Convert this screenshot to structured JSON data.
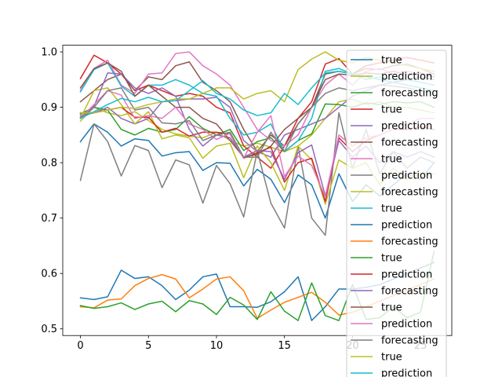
{
  "chart_data": {
    "type": "line",
    "title": "",
    "xlabel": "",
    "ylabel": "",
    "xlim": [
      -1.3,
      27.3
    ],
    "ylim": [
      0.488,
      1.012
    ],
    "xticks": [
      0,
      5,
      10,
      15,
      20,
      25
    ],
    "yticks": [
      0.5,
      0.6,
      0.7,
      0.8,
      0.9,
      1.0
    ],
    "ytick_labels": [
      "0.5",
      "0.6",
      "0.7",
      "0.8",
      "0.9",
      "1.0"
    ],
    "grid": false,
    "legend_position": "right",
    "legend": [
      "true",
      "prediction",
      "forecasting",
      "true",
      "prediction",
      "forecasting",
      "true",
      "prediction",
      "forecasting",
      "true",
      "prediction",
      "forecasting",
      "true",
      "prediction",
      "forecasting",
      "true",
      "prediction",
      "forecasting",
      "true",
      "prediction"
    ],
    "series": [
      {
        "name": "true",
        "color": "#1f77b4",
        "x": [
          0,
          1,
          2,
          3,
          4,
          5,
          6,
          7,
          8,
          9,
          10,
          11,
          12,
          13,
          14,
          15,
          16,
          17,
          18,
          19,
          20,
          21,
          22,
          23,
          24,
          25,
          26
        ],
        "values": [
          0.838,
          0.87,
          0.855,
          0.83,
          0.843,
          0.84,
          0.812,
          0.818,
          0.82,
          0.786,
          0.8,
          0.799,
          0.758,
          0.788,
          0.77,
          0.728,
          0.778,
          0.76,
          0.7,
          0.78,
          0.73,
          0.76,
          0.74,
          0.76,
          0.78,
          0.77,
          0.8
        ]
      },
      {
        "name": "prediction",
        "color": "#bcbd22",
        "x": [
          0,
          1,
          2,
          3,
          4,
          5,
          6,
          7,
          8,
          9,
          10,
          11,
          12,
          13,
          14,
          15,
          16,
          17,
          18,
          19,
          20,
          21,
          22,
          23,
          24,
          25,
          26
        ],
        "values": [
          0.875,
          0.9,
          0.89,
          0.885,
          0.892,
          0.876,
          0.86,
          0.852,
          0.848,
          0.845,
          0.855,
          0.84,
          0.83,
          0.835,
          0.828,
          0.82,
          0.83,
          0.85,
          0.88,
          0.91,
          0.915,
          0.905,
          0.91,
          0.9,
          0.9,
          0.895,
          0.89
        ]
      },
      {
        "name": "forecasting",
        "color": "#2ca02c",
        "x": [
          0,
          1,
          2,
          3,
          4,
          5,
          6,
          7,
          8,
          9,
          10,
          11,
          12,
          13,
          14,
          15,
          16,
          17,
          18,
          19,
          20,
          21,
          22,
          23,
          24,
          25,
          26
        ],
        "values": [
          0.888,
          0.9,
          0.895,
          0.86,
          0.85,
          0.862,
          0.855,
          0.86,
          0.883,
          0.862,
          0.85,
          0.86,
          0.822,
          0.838,
          0.845,
          0.82,
          0.84,
          0.852,
          0.906,
          0.905,
          0.9,
          0.908,
          0.905,
          0.91,
          0.908,
          0.91,
          0.9
        ]
      },
      {
        "name": "true",
        "color": "#d62728",
        "x": [
          0,
          1,
          2,
          3,
          4,
          5,
          6,
          7,
          8,
          9,
          10,
          11,
          12,
          13,
          14,
          15,
          16,
          17,
          18,
          19,
          20,
          21,
          22,
          23,
          24,
          25,
          26
        ],
        "values": [
          0.952,
          0.994,
          0.98,
          0.96,
          0.93,
          0.94,
          0.93,
          0.92,
          0.925,
          0.92,
          0.9,
          0.89,
          0.83,
          0.81,
          0.79,
          0.83,
          0.88,
          0.91,
          0.978,
          0.988,
          0.96,
          0.975,
          0.98,
          0.985,
          0.99,
          0.985,
          0.98
        ]
      },
      {
        "name": "prediction",
        "color": "#9467bd",
        "x": [
          0,
          1,
          2,
          3,
          4,
          5,
          6,
          7,
          8,
          9,
          10,
          11,
          12,
          13,
          14,
          15,
          16,
          17,
          18,
          19,
          20,
          21,
          22,
          23,
          24,
          25,
          26
        ],
        "values": [
          0.885,
          0.89,
          0.9,
          0.88,
          0.87,
          0.88,
          0.91,
          0.912,
          0.915,
          0.915,
          0.918,
          0.9,
          0.84,
          0.82,
          0.81,
          0.85,
          0.86,
          0.87,
          0.88,
          0.9,
          0.92,
          0.93,
          0.94,
          0.945,
          0.95,
          0.955,
          0.95
        ]
      },
      {
        "name": "forecasting",
        "color": "#8c564b",
        "x": [
          0,
          1,
          2,
          3,
          4,
          5,
          6,
          7,
          8,
          9,
          10,
          11,
          12,
          13,
          14,
          15,
          16,
          17,
          18,
          19,
          20,
          21,
          22,
          23,
          24,
          25,
          26
        ],
        "values": [
          0.91,
          0.93,
          0.95,
          0.96,
          0.93,
          0.955,
          0.95,
          0.975,
          0.982,
          0.945,
          0.93,
          0.91,
          0.86,
          0.82,
          0.85,
          0.83,
          0.87,
          0.9,
          0.96,
          0.965,
          0.96,
          0.97,
          0.968,
          0.975,
          0.978,
          0.97,
          0.96
        ]
      },
      {
        "name": "true",
        "color": "#e377c2",
        "x": [
          0,
          1,
          2,
          3,
          4,
          5,
          6,
          7,
          8,
          9,
          10,
          11,
          12,
          13,
          14,
          15,
          16,
          17,
          18,
          19,
          20,
          21,
          22,
          23,
          24,
          25,
          26
        ],
        "values": [
          0.93,
          0.97,
          0.985,
          0.94,
          0.925,
          0.96,
          0.962,
          0.997,
          1.0,
          0.975,
          0.96,
          0.94,
          0.9,
          0.86,
          0.84,
          0.83,
          0.85,
          0.9,
          0.94,
          0.96,
          0.94,
          0.965,
          0.97,
          0.96,
          0.965,
          0.96,
          0.955
        ]
      },
      {
        "name": "prediction",
        "color": "#7f7f7f",
        "x": [
          0,
          1,
          2,
          3,
          4,
          5,
          6,
          7,
          8,
          9,
          10,
          11,
          12,
          13,
          14,
          15,
          16,
          17,
          18,
          19,
          20,
          21,
          22,
          23,
          24,
          25,
          26
        ],
        "values": [
          0.768,
          0.87,
          0.838,
          0.776,
          0.831,
          0.822,
          0.755,
          0.805,
          0.796,
          0.727,
          0.795,
          0.762,
          0.702,
          0.821,
          0.727,
          0.682,
          0.83,
          0.7,
          0.669,
          0.89,
          0.79,
          0.86,
          0.78,
          0.82,
          0.79,
          0.81,
          0.8
        ]
      },
      {
        "name": "forecasting",
        "color": "#bcbd22",
        "x": [
          0,
          1,
          2,
          3,
          4,
          5,
          6,
          7,
          8,
          9,
          10,
          11,
          12,
          13,
          14,
          15,
          16,
          17,
          18,
          19,
          20,
          21,
          22,
          23,
          24,
          25,
          26
        ],
        "values": [
          0.88,
          0.93,
          0.935,
          0.905,
          0.87,
          0.892,
          0.843,
          0.85,
          0.845,
          0.808,
          0.83,
          0.835,
          0.773,
          0.83,
          0.8,
          0.75,
          0.83,
          0.805,
          0.725,
          0.805,
          0.79,
          0.8,
          0.76,
          0.79,
          0.77,
          0.78,
          0.78
        ]
      },
      {
        "name": "true",
        "color": "#17becf",
        "x": [
          0,
          1,
          2,
          3,
          4,
          5,
          6,
          7,
          8,
          9,
          10,
          11,
          12,
          13,
          14,
          15,
          16,
          17,
          18,
          19,
          20,
          21,
          22,
          23,
          24,
          25,
          26
        ],
        "values": [
          0.928,
          0.968,
          0.98,
          0.938,
          0.92,
          0.94,
          0.94,
          0.95,
          0.94,
          0.925,
          0.92,
          0.88,
          0.85,
          0.855,
          0.87,
          0.82,
          0.84,
          0.88,
          0.965,
          0.97,
          0.96,
          0.95,
          0.955,
          0.95,
          0.95,
          0.945,
          0.94
        ]
      },
      {
        "name": "prediction",
        "color": "#1f77b4",
        "x": [
          0,
          1,
          2,
          3,
          4,
          5,
          6,
          7,
          8,
          9,
          10,
          11,
          12,
          13,
          14,
          15,
          16,
          17,
          18,
          19,
          20,
          21,
          22,
          23,
          24,
          25,
          26
        ],
        "values": [
          0.556,
          0.553,
          0.558,
          0.606,
          0.591,
          0.594,
          0.578,
          0.553,
          0.57,
          0.594,
          0.599,
          0.54,
          0.54,
          0.539,
          0.549,
          0.567,
          0.594,
          0.515,
          0.54,
          0.572,
          0.572,
          0.575,
          0.58,
          0.59,
          0.6,
          0.61,
          0.62
        ]
      },
      {
        "name": "forecasting",
        "color": "#ff7f0e",
        "x": [
          0,
          1,
          2,
          3,
          4,
          5,
          6,
          7,
          8,
          9,
          10,
          11,
          12,
          13,
          14,
          15,
          16,
          17,
          18,
          19,
          20,
          21,
          22,
          23,
          24,
          25,
          26
        ],
        "values": [
          0.54,
          0.538,
          0.552,
          0.554,
          0.578,
          0.591,
          0.598,
          0.59,
          0.556,
          0.572,
          0.59,
          0.594,
          0.569,
          0.519,
          0.534,
          0.548,
          0.557,
          0.566,
          0.548,
          0.525,
          0.53,
          0.54,
          0.55,
          0.56,
          0.57,
          0.58,
          0.59
        ]
      },
      {
        "name": "true",
        "color": "#2ca02c",
        "x": [
          0,
          1,
          2,
          3,
          4,
          5,
          6,
          7,
          8,
          9,
          10,
          11,
          12,
          13,
          14,
          15,
          16,
          17,
          18,
          19,
          20,
          21,
          22,
          23,
          24,
          25,
          26
        ],
        "values": [
          0.542,
          0.537,
          0.54,
          0.547,
          0.535,
          0.545,
          0.55,
          0.531,
          0.551,
          0.545,
          0.526,
          0.557,
          0.543,
          0.517,
          0.567,
          0.532,
          0.515,
          0.583,
          0.524,
          0.515,
          0.58,
          0.517,
          0.52,
          0.54,
          0.52,
          0.53,
          0.64
        ]
      },
      {
        "name": "prediction",
        "color": "#d62728",
        "x": [
          0,
          1,
          2,
          3,
          4,
          5,
          6,
          7,
          8,
          9,
          10,
          11,
          12,
          13,
          14,
          15,
          16,
          17,
          18,
          19,
          20,
          21,
          22,
          23,
          24,
          25,
          26
        ],
        "values": [
          0.89,
          0.89,
          0.895,
          0.9,
          0.882,
          0.882,
          0.855,
          0.862,
          0.848,
          0.855,
          0.855,
          0.852,
          0.808,
          0.818,
          0.828,
          0.765,
          0.8,
          0.808,
          0.73,
          0.845,
          0.82,
          0.84,
          0.85,
          0.86,
          0.86,
          0.865,
          0.86
        ]
      },
      {
        "name": "forecasting",
        "color": "#9467bd",
        "x": [
          0,
          1,
          2,
          3,
          4,
          5,
          6,
          7,
          8,
          9,
          10,
          11,
          12,
          13,
          14,
          15,
          16,
          17,
          18,
          19,
          20,
          21,
          22,
          23,
          24,
          25,
          26
        ],
        "values": [
          0.882,
          0.902,
          0.962,
          0.96,
          0.935,
          0.925,
          0.935,
          0.92,
          0.86,
          0.83,
          0.85,
          0.845,
          0.81,
          0.822,
          0.82,
          0.77,
          0.818,
          0.832,
          0.74,
          0.84,
          0.81,
          0.83,
          0.8,
          0.82,
          0.81,
          0.82,
          0.81
        ]
      },
      {
        "name": "true",
        "color": "#8c564b",
        "x": [
          0,
          1,
          2,
          3,
          4,
          5,
          6,
          7,
          8,
          9,
          10,
          11,
          12,
          13,
          14,
          15,
          16,
          17,
          18,
          19,
          20,
          21,
          22,
          23,
          24,
          25,
          26
        ],
        "values": [
          0.935,
          0.97,
          0.98,
          0.965,
          0.92,
          0.94,
          0.92,
          0.9,
          0.9,
          0.88,
          0.87,
          0.84,
          0.81,
          0.815,
          0.83,
          0.86,
          0.88,
          0.9,
          0.95,
          0.96,
          0.958,
          0.962,
          0.96,
          0.965,
          0.96,
          0.962,
          0.955
        ]
      },
      {
        "name": "prediction",
        "color": "#e377c2",
        "x": [
          0,
          1,
          2,
          3,
          4,
          5,
          6,
          7,
          8,
          9,
          10,
          11,
          12,
          13,
          14,
          15,
          16,
          17,
          18,
          19,
          20,
          21,
          22,
          23,
          24,
          25,
          26
        ],
        "values": [
          0.88,
          0.905,
          0.93,
          0.922,
          0.88,
          0.885,
          0.88,
          0.9,
          0.87,
          0.86,
          0.842,
          0.853,
          0.808,
          0.855,
          0.885,
          0.775,
          0.812,
          0.795,
          0.738,
          0.85,
          0.83,
          0.845,
          0.85,
          0.86,
          0.87,
          0.88,
          0.88
        ]
      },
      {
        "name": "forecasting",
        "color": "#7f7f7f",
        "x": [
          0,
          1,
          2,
          3,
          4,
          5,
          6,
          7,
          8,
          9,
          10,
          11,
          12,
          13,
          14,
          15,
          16,
          17,
          18,
          19,
          20,
          21,
          22,
          23,
          24,
          25,
          26
        ],
        "values": [
          0.88,
          0.9,
          0.93,
          0.935,
          0.895,
          0.9,
          0.872,
          0.87,
          0.876,
          0.84,
          0.85,
          0.855,
          0.81,
          0.81,
          0.855,
          0.82,
          0.87,
          0.9,
          0.925,
          0.935,
          0.93,
          0.935,
          0.94,
          0.938,
          0.935,
          0.93,
          0.925
        ]
      },
      {
        "name": "true",
        "color": "#bcbd22",
        "x": [
          0,
          1,
          2,
          3,
          4,
          5,
          6,
          7,
          8,
          9,
          10,
          11,
          12,
          13,
          14,
          15,
          16,
          17,
          18,
          19,
          20,
          21,
          22,
          23,
          24,
          25,
          26
        ],
        "values": [
          0.89,
          0.89,
          0.895,
          0.9,
          0.898,
          0.905,
          0.91,
          0.915,
          0.915,
          0.925,
          0.935,
          0.935,
          0.915,
          0.925,
          0.93,
          0.91,
          0.968,
          0.987,
          1.0,
          0.985,
          0.98,
          0.99,
          0.985,
          0.98,
          0.975,
          0.97,
          0.965
        ]
      },
      {
        "name": "prediction",
        "color": "#17becf",
        "x": [
          0,
          1,
          2,
          3,
          4,
          5,
          6,
          7,
          8,
          9,
          10,
          11,
          12,
          13,
          14,
          15,
          16,
          17,
          18,
          19,
          20,
          21,
          22,
          23,
          24,
          25,
          26
        ],
        "values": [
          0.88,
          0.892,
          0.905,
          0.916,
          0.91,
          0.918,
          0.91,
          0.912,
          0.93,
          0.948,
          0.925,
          0.915,
          0.895,
          0.885,
          0.89,
          0.925,
          0.905,
          0.935,
          0.962,
          0.965,
          0.96,
          0.955,
          0.95,
          0.945,
          0.94,
          0.935,
          0.93
        ]
      }
    ]
  }
}
